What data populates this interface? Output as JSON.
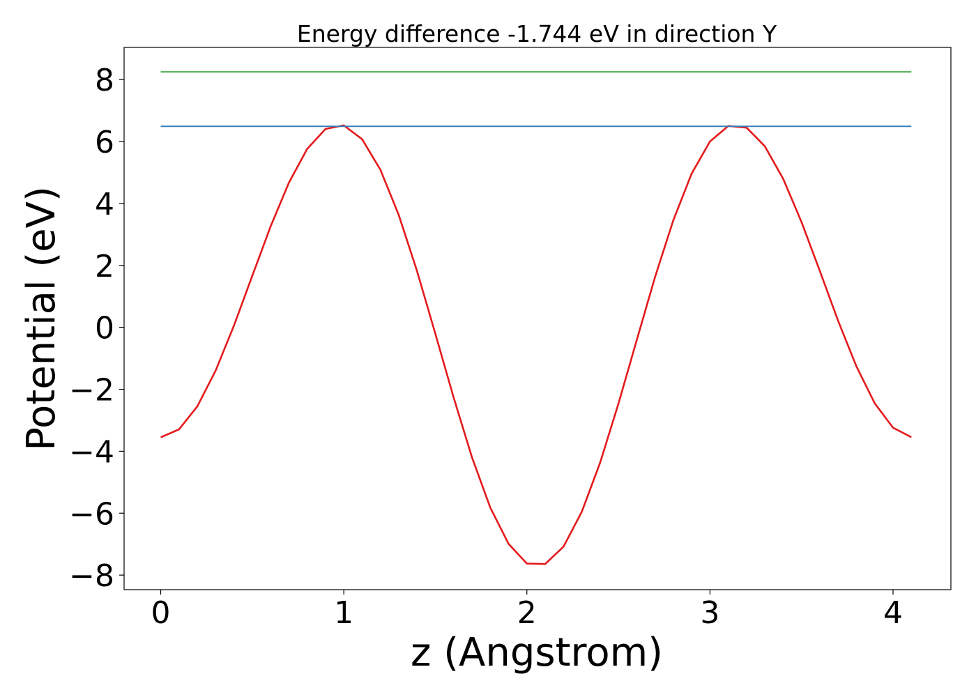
{
  "chart_data": {
    "type": "line",
    "title": "Energy difference -1.744 eV in direction Y",
    "x_label": "z (Angstrom)",
    "y_label": "Potential (eV)",
    "xlim": [
      -0.2,
      4.316
    ],
    "ylim": [
      -8.47,
      9.04
    ],
    "xticks": [
      0,
      1,
      2,
      3,
      4
    ],
    "yticks": [
      {
        "value": -8,
        "label": "−8"
      },
      {
        "value": -6,
        "label": "−6"
      },
      {
        "value": -4,
        "label": "−4"
      },
      {
        "value": -2,
        "label": "−2"
      },
      0,
      2,
      4,
      6,
      8
    ],
    "grid": false,
    "series": [
      {
        "color": "#e41a1c",
        "x": [
          0,
          0.1,
          0.2,
          0.3,
          0.4,
          0.5,
          0.6,
          0.7,
          0.8,
          0.9,
          1.0,
          1.1,
          1.2,
          1.3,
          1.4,
          1.5,
          1.6,
          1.7,
          1.8,
          1.9,
          2.0,
          2.1,
          2.2,
          2.3,
          2.4,
          2.5,
          2.6,
          2.7,
          2.8,
          2.9,
          3.0,
          3.1,
          3.2,
          3.3,
          3.4,
          3.5,
          3.6,
          3.7,
          3.8,
          3.9,
          4.0,
          4.1
        ],
        "values": [
          -3.55,
          -3.294,
          -2.552,
          -1.396,
          0.056,
          1.661,
          3.255,
          4.669,
          5.761,
          6.406,
          6.522,
          6.076,
          5.089,
          3.631,
          1.819,
          -0.206,
          -2.265,
          -4.195,
          -5.818,
          -6.991,
          -7.628,
          -7.642,
          -7.083,
          -5.955,
          -4.371,
          -2.466,
          -0.413,
          1.625,
          3.461,
          4.965,
          6.002,
          6.503,
          6.448,
          5.845,
          4.795,
          3.402,
          1.822,
          0.21,
          -1.262,
          -2.453,
          -3.241,
          -3.547
        ]
      },
      {
        "color": "#377eb8",
        "x": [
          0,
          4.1
        ],
        "values": [
          6.49,
          6.49
        ]
      },
      {
        "color": "#4daf4a",
        "x": [
          0,
          4.1
        ],
        "values": [
          8.25,
          8.25
        ]
      }
    ]
  }
}
